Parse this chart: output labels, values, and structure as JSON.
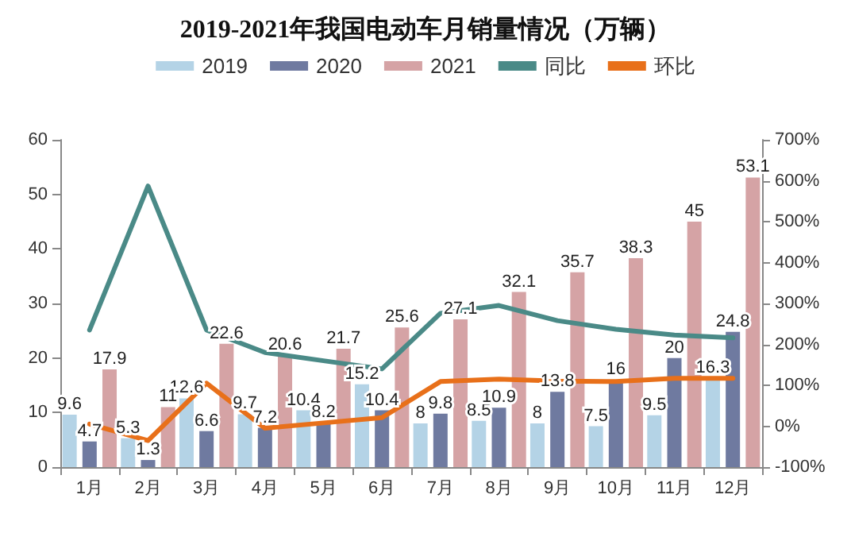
{
  "chart_data": {
    "type": "bar",
    "title": "2019-2021年我国电动车月销量情况（万辆）",
    "categories": [
      "1月",
      "2月",
      "3月",
      "4月",
      "5月",
      "6月",
      "7月",
      "8月",
      "9月",
      "10月",
      "11月",
      "12月"
    ],
    "series": [
      {
        "name": "2019",
        "color": "#b4d3e6",
        "values": [
          9.6,
          5.3,
          12.6,
          9.7,
          10.4,
          15.2,
          8,
          8.5,
          8,
          7.5,
          9.5,
          16.3
        ],
        "value_labels": [
          "9.6",
          "5.3",
          "12.6",
          "9.7",
          "10.4",
          "15.2",
          "8",
          "8.5",
          "8",
          "7.5",
          "9.5",
          "16.3"
        ]
      },
      {
        "name": "2020",
        "color": "#6f7aa0",
        "values": [
          4.7,
          1.3,
          6.6,
          7.2,
          8.2,
          10.4,
          9.8,
          10.9,
          13.8,
          16,
          20,
          24.8
        ],
        "value_labels": [
          "4.7",
          "1.3",
          "6.6",
          "7.2",
          "8.2",
          "10.4",
          "9.8",
          "10.9",
          "13.8",
          "16",
          "20",
          "24.8"
        ]
      },
      {
        "name": "2021",
        "color": "#d5a3a5",
        "values": [
          17.9,
          11,
          22.6,
          20.6,
          21.7,
          25.6,
          27.1,
          32.1,
          35.7,
          38.3,
          45,
          53.1
        ],
        "value_labels": [
          "17.9",
          "11",
          "22.6",
          "20.6",
          "21.7",
          "25.6",
          "27.1",
          "32.1",
          "35.7",
          "38.3",
          "45",
          "53.1"
        ]
      },
      {
        "name": "同比",
        "type": "line",
        "axis": "y2",
        "color": "#4a8a87",
        "values": [
          235,
          587,
          235,
          180,
          160,
          140,
          276,
          295,
          258,
          237,
          223,
          216
        ]
      },
      {
        "name": "环比",
        "type": "line",
        "axis": "y2",
        "color": "#e8701a",
        "values": [
          5,
          -35,
          105,
          -5,
          8,
          21,
          109,
          115,
          110,
          109,
          117,
          117
        ]
      }
    ],
    "ylim": [
      0,
      60
    ],
    "yticks": [
      0,
      10,
      20,
      30,
      40,
      50,
      60
    ],
    "y2lim": [
      -100,
      700
    ],
    "y2ticks": [
      {
        "value": -100,
        "label": "-100%"
      },
      {
        "value": 0,
        "label": "0%"
      },
      {
        "value": 100,
        "label": "100%"
      },
      {
        "value": 200,
        "label": "200%"
      },
      {
        "value": 300,
        "label": "300%"
      },
      {
        "value": 400,
        "label": "400%"
      },
      {
        "value": 500,
        "label": "500%"
      },
      {
        "value": 600,
        "label": "600%"
      },
      {
        "value": 700,
        "label": "700%"
      }
    ],
    "grid": false,
    "legend": "top",
    "marker": "none"
  }
}
